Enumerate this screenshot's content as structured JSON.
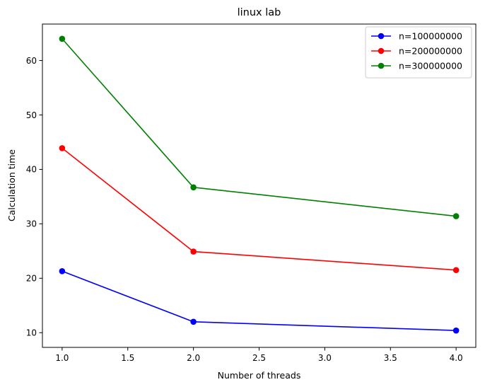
{
  "chart_data": {
    "type": "line",
    "title": "linux lab",
    "xlabel": "Number of threads",
    "ylabel": "Calculation time",
    "x": [
      1.0,
      2.0,
      4.0
    ],
    "xlim": [
      0.85,
      4.15
    ],
    "ylim": [
      7.3,
      66.7
    ],
    "xticks": [
      1.0,
      1.5,
      2.0,
      2.5,
      3.0,
      3.5,
      4.0
    ],
    "xtick_labels": [
      "1.0",
      "1.5",
      "2.0",
      "2.5",
      "3.0",
      "3.5",
      "4.0"
    ],
    "yticks": [
      10,
      20,
      30,
      40,
      50,
      60
    ],
    "ytick_labels": [
      "10",
      "20",
      "30",
      "40",
      "50",
      "60"
    ],
    "grid": false,
    "legend_position": "top-right",
    "series": [
      {
        "name": "n=100000000",
        "color": "#0000ff",
        "marker": "circle",
        "values": [
          21.3,
          12.0,
          10.4
        ]
      },
      {
        "name": "n=200000000",
        "color": "#ff0000",
        "marker": "circle",
        "values": [
          43.9,
          24.9,
          21.5
        ]
      },
      {
        "name": "n=300000000",
        "color": "#008000",
        "marker": "circle",
        "values": [
          64.0,
          36.7,
          31.4
        ]
      }
    ]
  }
}
